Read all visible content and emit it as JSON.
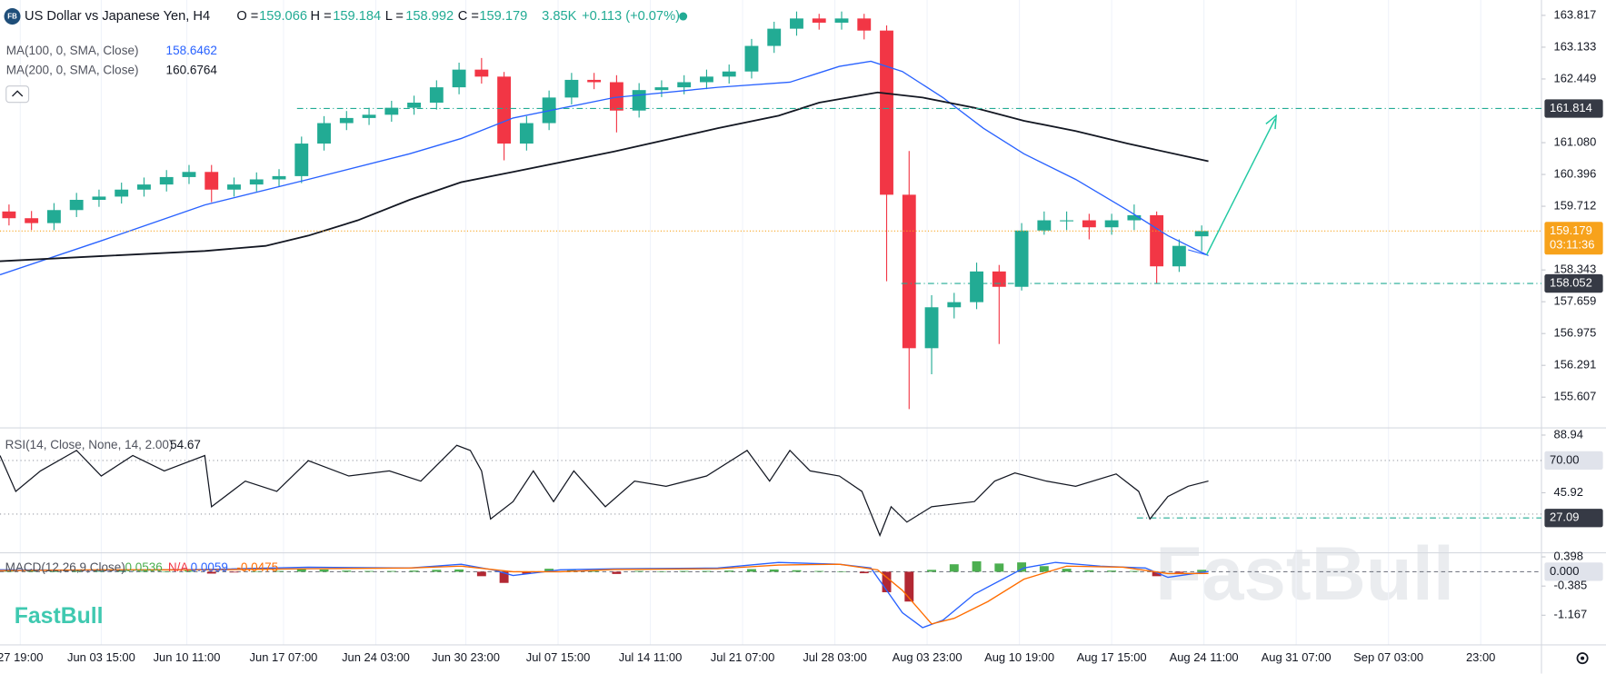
{
  "header": {
    "badge": "FB",
    "title": "US Dollar vs Japanese Yen, H4",
    "ohlc": [
      {
        "label": "O =",
        "value": "159.066"
      },
      {
        "label": "H =",
        "value": "159.184"
      },
      {
        "label": "L =",
        "value": "158.992"
      },
      {
        "label": "C =",
        "value": "159.179"
      }
    ],
    "volume": "3.85K",
    "change": "+0.113 (+0.07%)"
  },
  "watermark": "FastBull",
  "logo": "FastBull",
  "chart_data": [
    {
      "type": "candlestick",
      "xlim": [
        -9,
        676
      ],
      "xticks": [
        {
          "value": 0,
          "label": "27 19:00"
        },
        {
          "value": 36,
          "label": "Jun 03 15:00"
        },
        {
          "value": 74,
          "label": "Jun 10 11:00"
        },
        {
          "value": 117,
          "label": "Jun 17 07:00"
        },
        {
          "value": 158,
          "label": "Jun 24 03:00"
        },
        {
          "value": 198,
          "label": "Jun 30 23:00"
        },
        {
          "value": 239,
          "label": "Jul 07 15:00"
        },
        {
          "value": 280,
          "label": "Jul 14 11:00"
        },
        {
          "value": 321,
          "label": "Jul 21 07:00"
        },
        {
          "value": 362,
          "label": "Jul 28 03:00"
        },
        {
          "value": 403,
          "label": "Aug 03 23:00"
        },
        {
          "value": 444,
          "label": "Aug 10 19:00"
        },
        {
          "value": 485,
          "label": "Aug 17 15:00"
        },
        {
          "value": 526,
          "label": "Aug 24 11:00"
        },
        {
          "value": 567,
          "label": "Aug 31 07:00"
        },
        {
          "value": 608,
          "label": "Sep 07 03:00"
        },
        {
          "value": 649,
          "label": "23:00"
        }
      ],
      "grid": true,
      "ylim": [
        154.946,
        164.147
      ],
      "yticks": [
        163.817,
        163.133,
        162.449,
        {
          "value": 161.08,
          "label": "161.080"
        },
        160.396,
        159.712,
        158.343,
        157.659,
        156.975,
        156.291,
        155.607
      ],
      "up_color": "#22ab94",
      "down_color": "#f23645",
      "x": [
        -5,
        5,
        15,
        25,
        35,
        45,
        55,
        65,
        75,
        85,
        95,
        105,
        115,
        125,
        135,
        145,
        155,
        165,
        175,
        185,
        195,
        205,
        215,
        225,
        235,
        245,
        255,
        265,
        275,
        285,
        295,
        305,
        315,
        325,
        335,
        345,
        355,
        365,
        375,
        385,
        395,
        405,
        415,
        425,
        435,
        445,
        455,
        465,
        475,
        485,
        495,
        505,
        515,
        525
      ],
      "open": [
        159.6,
        159.455,
        159.35,
        159.63,
        159.85,
        159.92,
        160.07,
        160.18,
        160.34,
        160.45,
        160.07,
        160.18,
        160.29,
        160.36,
        161.06,
        161.5,
        161.61,
        161.68,
        161.83,
        161.94,
        162.27,
        162.65,
        162.5,
        161.06,
        161.5,
        162.05,
        162.43,
        162.38,
        161.77,
        162.21,
        162.27,
        162.38,
        162.5,
        162.61,
        163.16,
        163.53,
        163.75,
        163.66,
        163.75,
        163.49,
        159.96,
        156.66,
        157.54,
        157.65,
        158.31,
        157.98,
        159.19,
        159.41,
        159.41,
        159.26,
        159.41,
        159.52,
        158.42,
        159.066
      ],
      "high": [
        159.75,
        159.61,
        159.78,
        160.0,
        160.07,
        160.22,
        160.33,
        160.49,
        160.6,
        160.6,
        160.33,
        160.44,
        160.51,
        161.21,
        161.65,
        161.76,
        161.83,
        161.98,
        162.09,
        162.42,
        162.8,
        162.9,
        162.6,
        161.65,
        162.2,
        162.58,
        162.58,
        162.53,
        162.36,
        162.42,
        162.53,
        162.65,
        162.76,
        163.31,
        163.68,
        163.9,
        163.85,
        163.9,
        163.85,
        163.6,
        160.9,
        157.8,
        157.85,
        158.5,
        158.45,
        159.35,
        159.6,
        159.6,
        159.55,
        159.55,
        159.75,
        159.6,
        159.0,
        159.3
      ],
      "low": [
        159.3,
        159.2,
        159.2,
        159.48,
        159.7,
        159.77,
        159.92,
        160.03,
        160.19,
        159.8,
        159.92,
        160.03,
        160.14,
        160.21,
        160.91,
        161.35,
        161.46,
        161.53,
        161.68,
        161.79,
        162.12,
        162.35,
        160.7,
        160.91,
        161.35,
        161.9,
        162.23,
        161.3,
        161.62,
        162.06,
        162.12,
        162.23,
        162.35,
        162.46,
        163.01,
        163.38,
        163.51,
        163.51,
        163.3,
        158.1,
        155.35,
        156.1,
        157.3,
        157.5,
        156.75,
        157.9,
        159.1,
        159.2,
        159.0,
        159.1,
        159.2,
        158.05,
        158.3,
        158.75
      ],
      "close": [
        159.455,
        159.35,
        159.63,
        159.85,
        159.92,
        160.07,
        160.18,
        160.34,
        160.45,
        160.07,
        160.18,
        160.29,
        160.36,
        161.06,
        161.5,
        161.61,
        161.68,
        161.83,
        161.94,
        162.27,
        162.65,
        162.5,
        161.06,
        161.5,
        162.05,
        162.43,
        162.38,
        161.77,
        162.21,
        162.27,
        162.38,
        162.5,
        162.61,
        163.16,
        163.53,
        163.75,
        163.66,
        163.75,
        163.49,
        159.96,
        156.66,
        157.54,
        157.65,
        158.31,
        157.98,
        159.19,
        159.41,
        159.41,
        159.26,
        159.41,
        159.52,
        158.42,
        158.86,
        159.179
      ],
      "overlays": [
        {
          "name": "MA(100, 0, SMA, Close)",
          "legend_value": "158.6462",
          "color": "#2962ff",
          "x": [
            -9,
            36,
            82,
            128,
            173,
            196,
            219,
            264,
            310,
            342,
            364,
            378,
            392,
            410,
            428,
            446,
            469,
            492,
            510,
            528
          ],
          "values": [
            158.24,
            158.97,
            159.74,
            160.29,
            160.84,
            161.17,
            161.61,
            162.05,
            162.27,
            162.38,
            162.72,
            162.83,
            162.61,
            162.05,
            161.39,
            160.84,
            160.29,
            159.63,
            159.08,
            158.65
          ]
        },
        {
          "name": "MA(200, 0, SMA, Close)",
          "legend_value": "160.6764",
          "color": "#131722",
          "x": [
            -9,
            36,
            82,
            109,
            128,
            150,
            173,
            196,
            219,
            264,
            310,
            337,
            355,
            381,
            401,
            424,
            446,
            469,
            492,
            528
          ],
          "values": [
            158.53,
            158.64,
            158.75,
            158.86,
            159.08,
            159.41,
            159.85,
            160.23,
            160.45,
            160.89,
            161.39,
            161.66,
            161.94,
            162.16,
            162.05,
            161.83,
            161.55,
            161.33,
            161.06,
            160.68
          ]
        }
      ],
      "levels": [
        161.814,
        158.052
      ],
      "level_color": "#22ab94",
      "last_price": 159.179,
      "countdown": "03:11:36",
      "last_color": "#f7a21b"
    },
    {
      "type": "line",
      "ylim": [
        1.13,
        94.29
      ],
      "yticks": [
        88.94,
        45.92
      ],
      "levels": [
        70,
        30
      ],
      "level_labels": [
        {
          "value": 70,
          "label": "70.00"
        }
      ],
      "marker": 27.09,
      "marker_color": "#22ab94",
      "series": [
        {
          "name": "RSI(14, Close, None, 14, 2.00)",
          "legend_value": "54.67",
          "color": "#131722",
          "x": [
            -9,
            -2,
            9,
            25,
            36,
            50,
            64,
            82,
            85,
            100,
            114,
            128,
            146,
            164,
            178,
            194,
            200,
            205,
            209,
            219,
            228,
            237,
            246,
            260,
            273,
            287,
            305,
            323,
            333,
            342,
            351,
            364,
            374,
            382,
            387,
            394,
            405,
            424,
            433,
            442,
            456,
            469,
            487,
            497,
            502,
            510,
            519,
            528
          ],
          "values": [
            73.67,
            46.94,
            62.21,
            77.49,
            58.4,
            73.67,
            62.21,
            73.67,
            35.49,
            54.58,
            46.94,
            69.85,
            58.4,
            62.21,
            54.58,
            81.3,
            77.49,
            62.21,
            26.33,
            39.31,
            62.21,
            39.31,
            62.21,
            35.49,
            54.58,
            50.76,
            58.4,
            77.49,
            54.58,
            77.49,
            62.21,
            58.4,
            46.94,
            14.11,
            35.49,
            24.03,
            35.49,
            39.31,
            54.58,
            60.69,
            54.58,
            50.76,
            59.92,
            46.94,
            26.33,
            43.12,
            50.76,
            54.67
          ]
        }
      ]
    },
    {
      "type": "macd",
      "ylim": [
        -1.963,
        0.508
      ],
      "yticks": [
        0.398,
        -0.385,
        -1.167
      ],
      "zero_label": {
        "value": 0,
        "label": "0.000"
      },
      "legend": {
        "title": "MACD(12,26,9,Close)",
        "values": [
          {
            "text": "0.0536",
            "color": "#4caf50"
          },
          {
            "text": "N/A",
            "color": "#f23645"
          },
          {
            "text": "0.0059",
            "color": "#2962ff"
          },
          {
            "text": "-0.0475",
            "color": "#ff6d00"
          }
        ]
      },
      "histogram": {
        "up_color": "#4caf50",
        "down_color": "#b22833",
        "x": [
          -5,
          5,
          15,
          25,
          35,
          45,
          55,
          65,
          75,
          85,
          95,
          105,
          115,
          125,
          135,
          145,
          155,
          165,
          175,
          185,
          195,
          205,
          215,
          225,
          235,
          245,
          255,
          265,
          275,
          285,
          295,
          305,
          315,
          325,
          335,
          345,
          355,
          365,
          375,
          385,
          395,
          405,
          415,
          425,
          435,
          445,
          455,
          465,
          475,
          485,
          495,
          505,
          515,
          525
        ],
        "values": [
          0.02,
          0.03,
          0.01,
          0.04,
          0.02,
          0.03,
          0.02,
          0.01,
          0.03,
          -0.05,
          -0.02,
          0.01,
          0.02,
          0.08,
          0.06,
          0.03,
          0.02,
          0.02,
          0.03,
          0.05,
          0.06,
          -0.12,
          -0.3,
          -0.05,
          0.08,
          0.07,
          0.02,
          -0.06,
          0.02,
          0.01,
          0.02,
          0.02,
          0.03,
          0.07,
          0.06,
          0.04,
          0.02,
          0.01,
          -0.04,
          -0.55,
          -0.8,
          0.05,
          0.2,
          0.28,
          0.22,
          0.25,
          0.15,
          0.08,
          0.04,
          0.03,
          0.02,
          -0.12,
          -0.03,
          0.05
        ]
      },
      "series": [
        {
          "color": "#2962ff",
          "x": [
            -9,
            36,
            82,
            128,
            173,
            196,
            210,
            219,
            240,
            264,
            310,
            337,
            364,
            378,
            385,
            392,
            401,
            410,
            424,
            446,
            460,
            480,
            500,
            510,
            528
          ],
          "values": [
            0.05,
            0.04,
            0.06,
            0.12,
            0.1,
            0.2,
            0.05,
            -0.1,
            0.05,
            0.08,
            0.1,
            0.25,
            0.2,
            0.1,
            -0.5,
            -1.1,
            -1.5,
            -1.3,
            -0.6,
            0.1,
            0.25,
            0.15,
            0.1,
            -0.15,
            0.0059
          ]
        },
        {
          "color": "#ff6d00",
          "x": [
            -9,
            36,
            82,
            128,
            173,
            196,
            219,
            240,
            264,
            310,
            337,
            364,
            381,
            392,
            405,
            415,
            430,
            446,
            465,
            490,
            510,
            528
          ],
          "values": [
            0.03,
            0.05,
            0.05,
            0.08,
            0.1,
            0.15,
            0.0,
            0.0,
            0.06,
            0.08,
            0.18,
            0.2,
            0.05,
            -0.5,
            -1.4,
            -1.25,
            -0.8,
            -0.2,
            0.15,
            0.12,
            -0.05,
            -0.0475
          ]
        }
      ]
    }
  ]
}
